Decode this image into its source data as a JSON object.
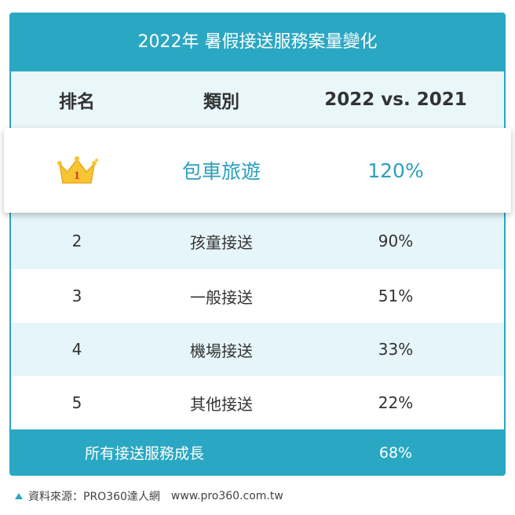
{
  "title": "2022年 暑假接送服務案量變化",
  "table": {
    "header": [
      "排名",
      "類別",
      "2022 vs. 2021"
    ],
    "rows": [
      [
        "1",
        "包車旅遊",
        "120%"
      ],
      [
        "2",
        "孩童接送",
        "90%"
      ],
      [
        "3",
        "一般接送",
        "51%"
      ],
      [
        "4",
        "機場接送",
        "33%"
      ],
      [
        "5",
        "其他接送",
        "22%"
      ]
    ],
    "footer": [
      "所有接送服務成長",
      "68%"
    ]
  },
  "source": "資料來源：PRO360達人網",
  "url": "www.pro360.com.tw"
}
